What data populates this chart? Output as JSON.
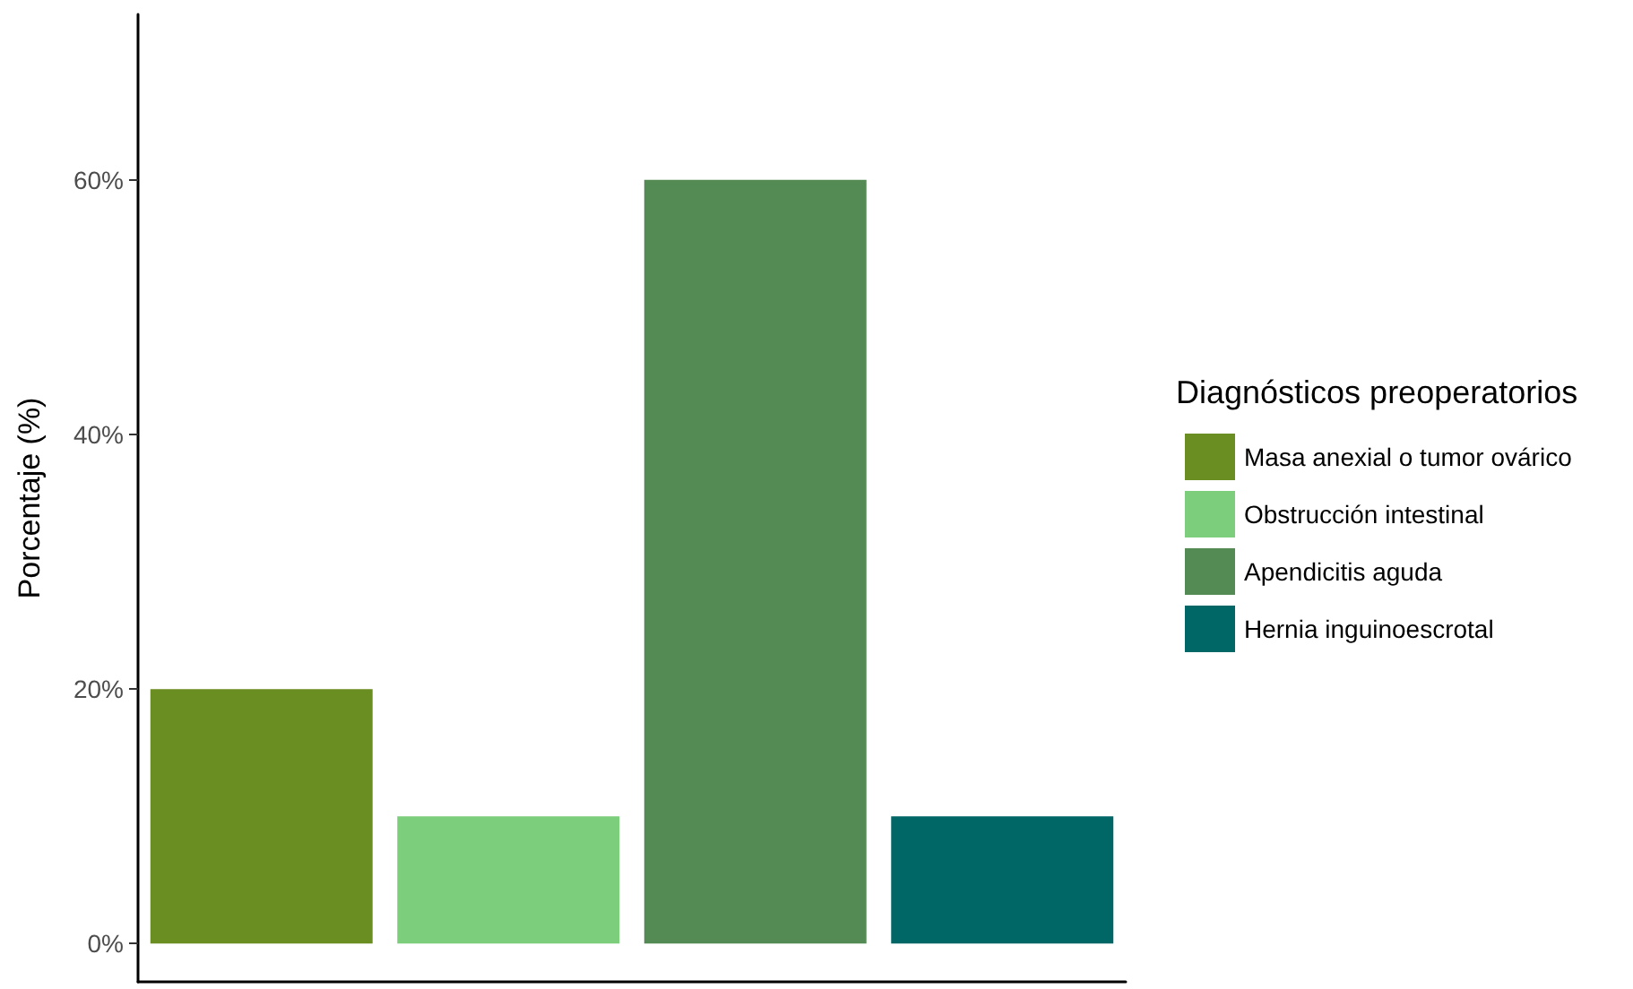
{
  "chart_data": {
    "type": "bar",
    "ylabel": "Porcentaje (%)",
    "legend_title": "Diagnósticos preoperatorios",
    "categories": [
      null,
      null,
      null,
      null
    ],
    "series": [
      {
        "name": "Masa anexial o tumor ovárico",
        "color": "#6b8e23",
        "values": [
          20,
          null,
          null,
          null
        ]
      },
      {
        "name": "Obstrucción intestinal",
        "color": "#7ccd7c",
        "values": [
          null,
          10,
          null,
          null
        ]
      },
      {
        "name": "Apendicitis aguda",
        "color": "#548b54",
        "values": [
          null,
          null,
          60,
          null
        ]
      },
      {
        "name": "Hernia inguinoescrotal",
        "color": "#006666",
        "values": [
          null,
          null,
          null,
          10
        ]
      }
    ],
    "stacked": true,
    "ylim": [
      -3,
      73
    ],
    "yticks": [
      {
        "value": 0,
        "label": "0%"
      },
      {
        "value": 20,
        "label": "20%"
      },
      {
        "value": 40,
        "label": "40%"
      },
      {
        "value": 60,
        "label": "60%"
      }
    ],
    "grid": false,
    "legend": "right",
    "tick_labels": "y"
  }
}
